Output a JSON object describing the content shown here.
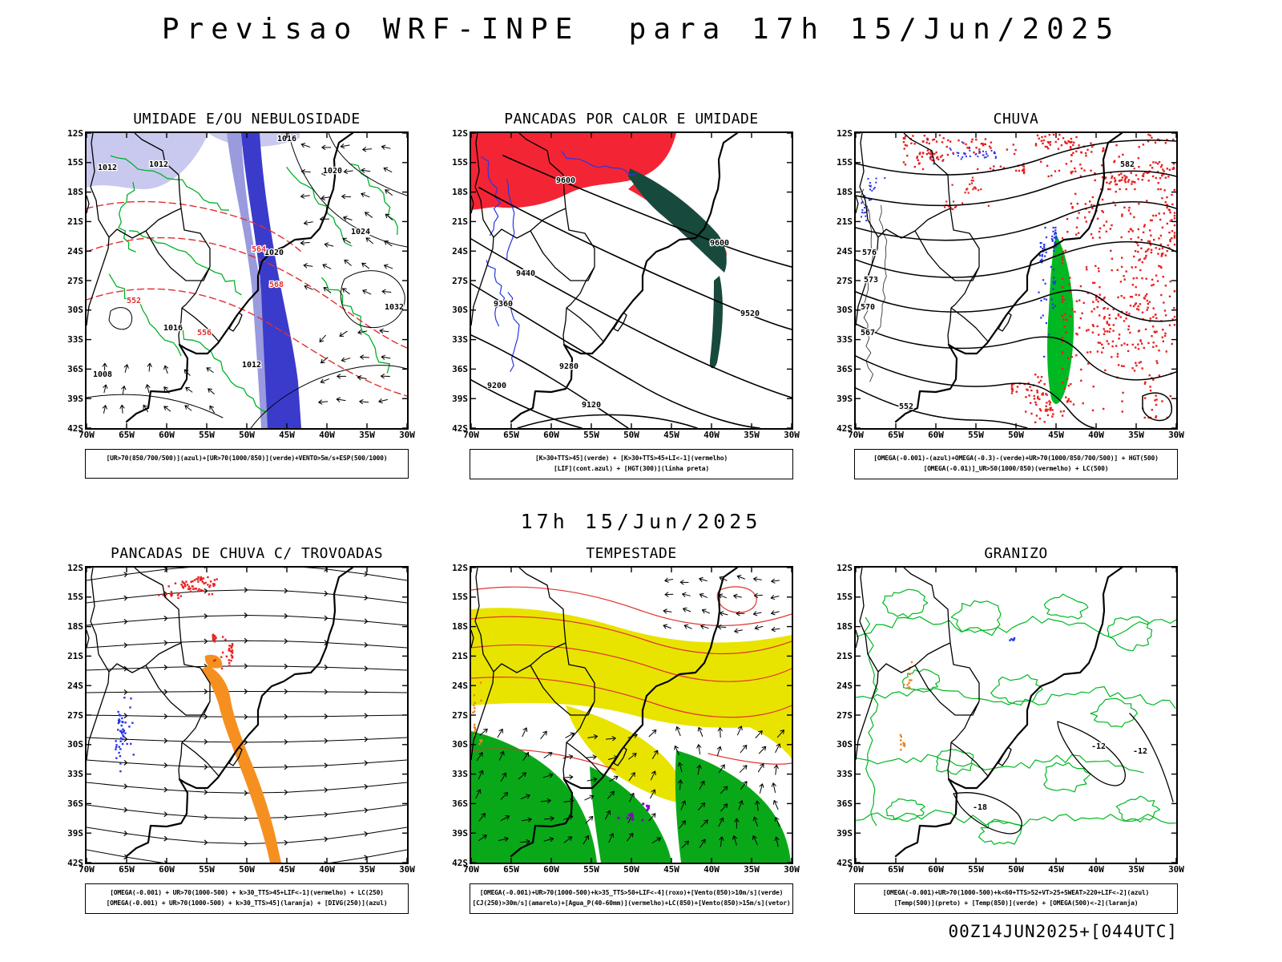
{
  "header": {
    "title": "Previsao WRF-INPE  para 17h 15/Jun/2025"
  },
  "mid_label": "17h 15/Jun/2025",
  "footer": "00Z14JUN2025+[044UTC]",
  "axes": {
    "lat": [
      "12S",
      "15S",
      "18S",
      "21S",
      "24S",
      "27S",
      "30S",
      "33S",
      "36S",
      "39S",
      "42S"
    ],
    "lon": [
      "70W",
      "65W",
      "60W",
      "55W",
      "50W",
      "45W",
      "40W",
      "35W",
      "30W"
    ]
  },
  "panels": [
    {
      "id": "umidade",
      "title": "UMIDADE E/OU NEBULOSIDADE",
      "caption_lines": [
        "[UR>70(850/700/500)](azul)+[UR>70(1000/850)](verde)+VENTO>5m/s+ESP(500/1000)",
        ""
      ],
      "map_labels": [
        "1016",
        "1012",
        "1012",
        "1020",
        "1024",
        "1020",
        "1016",
        "1008",
        "1032",
        "1012",
        "564",
        "568",
        "552",
        "556"
      ]
    },
    {
      "id": "pancadas-calor-umidade",
      "title": "PANCADAS POR CALOR E UMIDADE",
      "caption_lines": [
        "[K>30+TTS>45](verde) + [K>30+TTS>45+LI<-1](vermelho)",
        "[LIF](cont.azul) + [HGT(300)](linha preta)"
      ],
      "map_labels": [
        "9600",
        "9600",
        "9520",
        "9440",
        "9360",
        "9280",
        "9200",
        "9120"
      ]
    },
    {
      "id": "chuva",
      "title": "CHUVA",
      "caption_lines": [
        "[OMEGA(-0.001)-(azul)+OMEGA(-0.3)-(verde)+UR>70(1000/850/700/500)] + HGT(500)",
        "[OMEGA(-0.01)]_UR>50(1000/850)(vermelho) + LC(500)"
      ],
      "map_labels": [
        "582",
        "576",
        "573",
        "570",
        "567",
        "552"
      ]
    },
    {
      "id": "pancadas-trovoadas",
      "title": "PANCADAS DE CHUVA C/ TROVOADAS",
      "caption_lines": [
        "[OMEGA(-0.001) + UR>70(1000-500) + k>30_TTS>45+LIF<-1](vermelho) + LC(250)",
        "[OMEGA(-0.001) + UR>70(1000-500) + k>30_TTS>45](laranja) + [DIVG(250)](azul)"
      ],
      "map_labels": []
    },
    {
      "id": "tempestade",
      "title": "TEMPESTADE",
      "caption_lines": [
        "[OMEGA(-0.001)+UR>70(1000-500)+k>35_TTS>50+LIF<-4](roxo)+[Vento(850)>10m/s](verde)",
        "[CJ(250)>30m/s](amarelo)+[Agua_P(40-60mm)](vermelho)+LC(850)+[Vento(850)>15m/s](vetor)"
      ],
      "map_labels": []
    },
    {
      "id": "granizo",
      "title": "GRANIZO",
      "caption_lines": [
        "[OMEGA(-0.001)+UR>70(1000-500)+k<60+TTS>52+VT>25+SWEAT>220+LIF<-2](azul)",
        "[Temp(500)](preto) + [Temp(850)](verde) + [OMEGA(500)<-2](laranja)"
      ],
      "map_labels": [
        "-12",
        "-12",
        "-18"
      ]
    }
  ],
  "colors": {
    "humidity_blue": "#3b3bcb",
    "humidity_lavender": "#c9c9ef",
    "green_contour": "#00b228",
    "red_contour": "#e03030",
    "heat_red": "#f32535",
    "dark_teal": "#174a3c",
    "rain_green_fill": "#00b822",
    "stipple_red": "#e82020",
    "stipple_blue": "#2736e8",
    "orange_band": "#f59020",
    "storm_yellow": "#e8e400",
    "storm_green": "#09a818",
    "purple": "#8a00cc",
    "map_black": "#000000"
  }
}
